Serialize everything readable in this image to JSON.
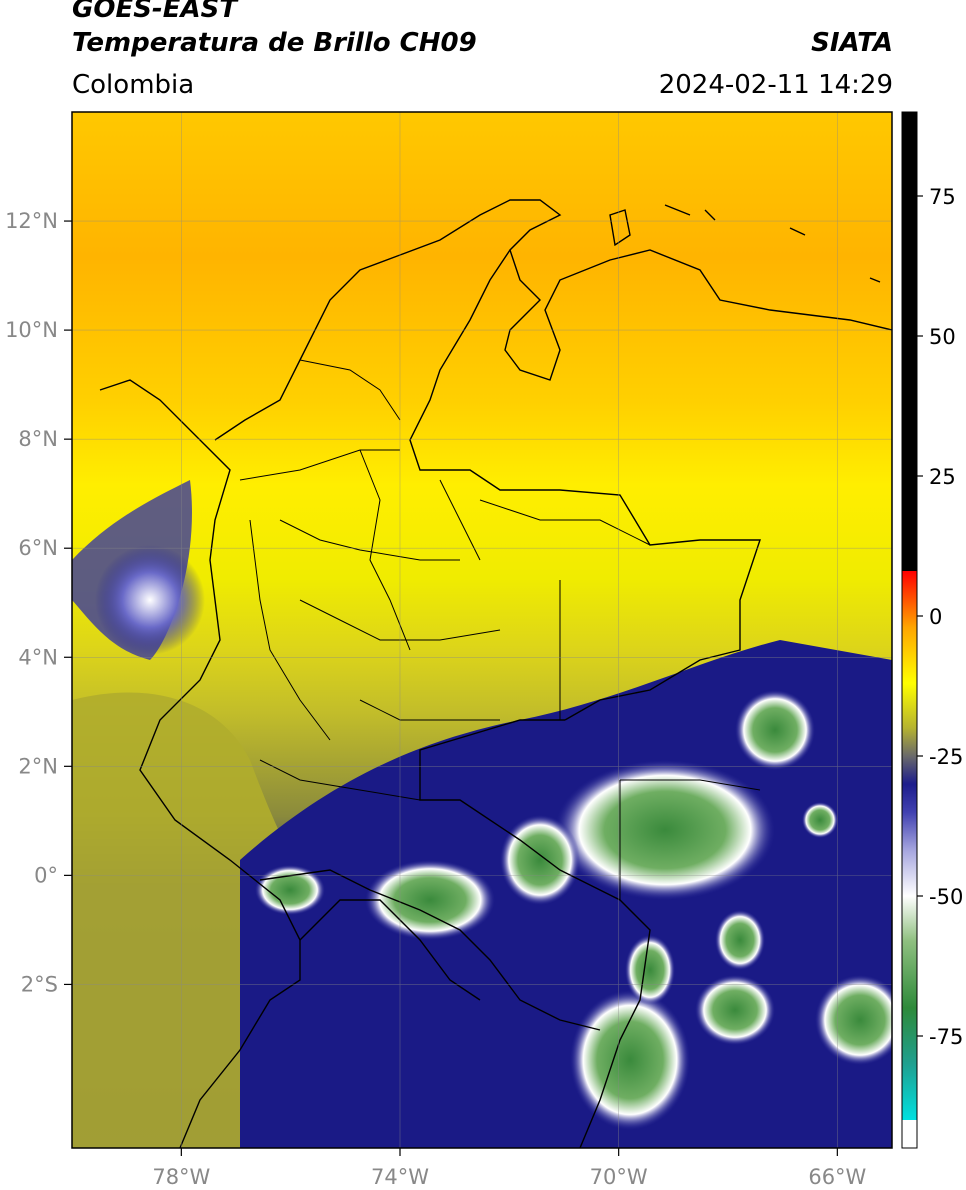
{
  "header": {
    "satellite": "GOES-EAST",
    "product": "Temperatura de Brillo CH09",
    "organization": "SIATA",
    "region": "Colombia",
    "datetime": "2024-02-11 14:29"
  },
  "map": {
    "lon_range": [
      -80,
      -65
    ],
    "lat_range": [
      -5,
      14
    ],
    "lon_ticks": [
      {
        "value": -78,
        "label": "78°W"
      },
      {
        "value": -74,
        "label": "74°W"
      },
      {
        "value": -70,
        "label": "70°W"
      },
      {
        "value": -66,
        "label": "66°W"
      }
    ],
    "lat_ticks": [
      {
        "value": 12,
        "label": "12°N"
      },
      {
        "value": 10,
        "label": "10°N"
      },
      {
        "value": 8,
        "label": "8°N"
      },
      {
        "value": 6,
        "label": "6°N"
      },
      {
        "value": 4,
        "label": "4°N"
      },
      {
        "value": 2,
        "label": "2°N"
      },
      {
        "value": 0,
        "label": "0°"
      },
      {
        "value": -2,
        "label": "2°S"
      }
    ],
    "grid": true
  },
  "colorbar": {
    "range": [
      -95,
      90
    ],
    "ticks": [
      {
        "value": 75,
        "label": "75"
      },
      {
        "value": 50,
        "label": "50"
      },
      {
        "value": 25,
        "label": "25"
      },
      {
        "value": 0,
        "label": "0"
      },
      {
        "value": -25,
        "label": "-25"
      },
      {
        "value": -50,
        "label": "-50"
      },
      {
        "value": -75,
        "label": "-75"
      }
    ],
    "stops": [
      {
        "value": -95,
        "color": "#ffffff"
      },
      {
        "value": -90,
        "color": "#ffffff"
      },
      {
        "value": -90,
        "color": "#00e0e0"
      },
      {
        "value": -80,
        "color": "#20a090"
      },
      {
        "value": -70,
        "color": "#2e8a3a"
      },
      {
        "value": -58,
        "color": "#8fc080"
      },
      {
        "value": -50,
        "color": "#ffffff"
      },
      {
        "value": -42,
        "color": "#a8a8e0"
      },
      {
        "value": -35,
        "color": "#4040b0"
      },
      {
        "value": -30,
        "color": "#1c1c8c"
      },
      {
        "value": -25,
        "color": "#6a6a6a"
      },
      {
        "value": -20,
        "color": "#b5b330"
      },
      {
        "value": -12,
        "color": "#ffff00"
      },
      {
        "value": -2,
        "color": "#ffa500"
      },
      {
        "value": 8,
        "color": "#ff0000"
      },
      {
        "value": 8,
        "color": "#000000"
      },
      {
        "value": 90,
        "color": "#000000"
      }
    ]
  }
}
